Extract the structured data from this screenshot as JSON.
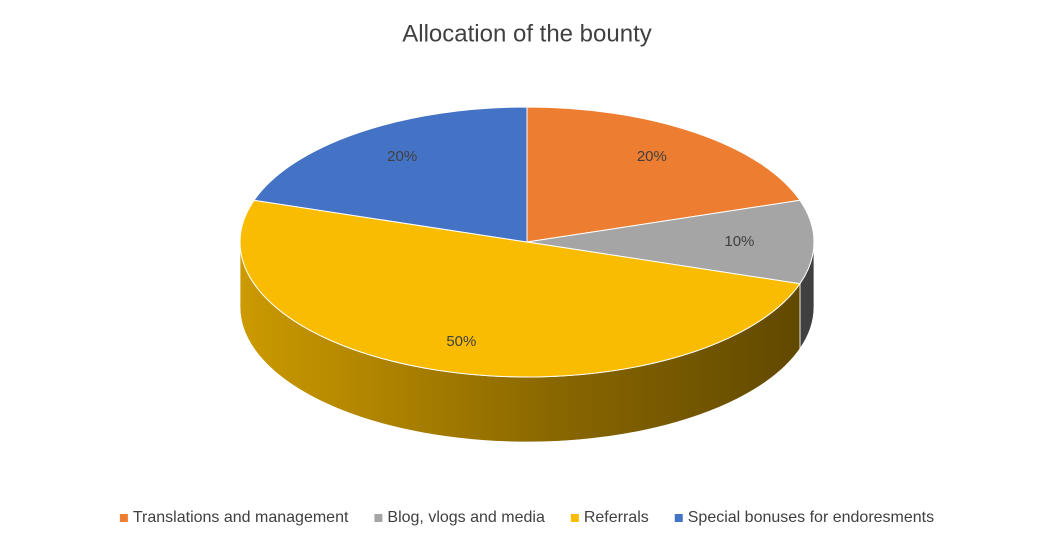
{
  "chart_data": {
    "type": "pie",
    "title": "Allocation of the bounty",
    "categories": [
      "Translations and management",
      "Blog, vlogs and media",
      "Referrals",
      "Special bonuses for endoresments"
    ],
    "values": [
      20,
      10,
      50,
      20
    ],
    "value_labels": [
      "20%",
      "10%",
      "50%",
      "20%"
    ],
    "colors": [
      "#ed7d31",
      "#a5a5a5",
      "#f9bc00",
      "#4472c4"
    ],
    "legend": "bottom"
  }
}
